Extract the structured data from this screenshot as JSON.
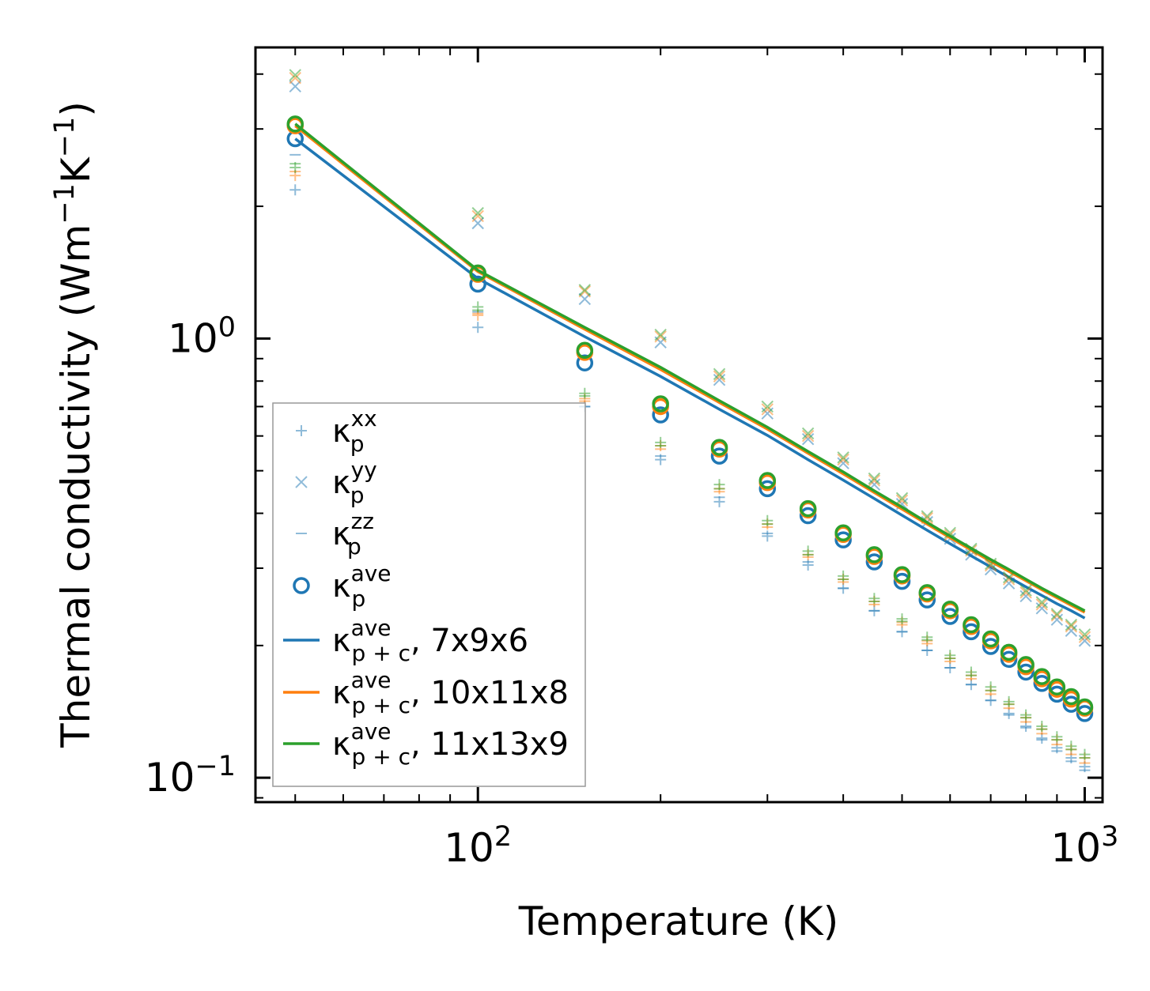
{
  "chart_data": {
    "type": "scatter",
    "xscale": "log",
    "yscale": "log",
    "xlabel": "Temperature (K)",
    "ylabel_main": "Thermal conductivity (Wm",
    "ylabel_sup1": "−1",
    "ylabel_mid": "K",
    "ylabel_sup2": "−1",
    "ylabel_end": ")",
    "xlim": [
      43,
      1070
    ],
    "ylim": [
      0.088,
      4.6
    ],
    "x_ticks": [
      {
        "value": 100,
        "base": "10",
        "exp": "2"
      },
      {
        "value": 1000,
        "base": "10",
        "exp": "3"
      }
    ],
    "y_ticks": [
      {
        "value": 0.1,
        "base": "10",
        "exp": "−1"
      },
      {
        "value": 1.0,
        "base": "10",
        "exp": "0"
      }
    ],
    "temperatures": [
      50,
      100,
      150,
      200,
      250,
      300,
      350,
      400,
      450,
      500,
      550,
      600,
      650,
      700,
      750,
      800,
      850,
      900,
      950,
      1000
    ],
    "meshes": [
      {
        "name": "7x9x6",
        "color": "#1f77b4",
        "xx": [
          2.18,
          1.06,
          0.7,
          0.53,
          0.425,
          0.355,
          0.305,
          0.27,
          0.24,
          0.215,
          0.195,
          0.178,
          0.163,
          0.15,
          0.14,
          0.131,
          0.123,
          0.117,
          0.111,
          0.106
        ],
        "yy": [
          3.75,
          1.83,
          1.23,
          0.98,
          0.805,
          0.675,
          0.59,
          0.52,
          0.465,
          0.42,
          0.382,
          0.35,
          0.322,
          0.298,
          0.277,
          0.259,
          0.243,
          0.229,
          0.216,
          0.205
        ],
        "zz": [
          2.62,
          1.15,
          0.7,
          0.54,
          0.435,
          0.36,
          0.31,
          0.27,
          0.24,
          0.215,
          0.195,
          0.178,
          0.163,
          0.15,
          0.139,
          0.13,
          0.122,
          0.115,
          0.109,
          0.104
        ],
        "ave": [
          2.85,
          1.33,
          0.88,
          0.67,
          0.54,
          0.455,
          0.395,
          0.348,
          0.31,
          0.28,
          0.254,
          0.233,
          0.215,
          0.199,
          0.186,
          0.174,
          0.164,
          0.155,
          0.147,
          0.14
        ],
        "total": [
          2.85,
          1.37,
          1.01,
          0.82,
          0.69,
          0.602,
          0.53,
          0.476,
          0.432,
          0.396,
          0.366,
          0.341,
          0.32,
          0.302,
          0.286,
          0.272,
          0.26,
          0.249,
          0.24,
          0.231
        ]
      },
      {
        "name": "10x11x8",
        "color": "#ff7f0e",
        "xx": [
          2.35,
          1.13,
          0.73,
          0.57,
          0.455,
          0.378,
          0.322,
          0.283,
          0.252,
          0.226,
          0.205,
          0.187,
          0.171,
          0.158,
          0.147,
          0.137,
          0.129,
          0.122,
          0.116,
          0.111
        ],
        "yy": [
          3.92,
          1.9,
          1.28,
          1.01,
          0.82,
          0.69,
          0.6,
          0.53,
          0.475,
          0.428,
          0.39,
          0.357,
          0.329,
          0.304,
          0.283,
          0.264,
          0.248,
          0.234,
          0.221,
          0.209
        ],
        "zz": [
          2.4,
          1.14,
          0.72,
          0.56,
          0.448,
          0.372,
          0.318,
          0.279,
          0.248,
          0.223,
          0.202,
          0.184,
          0.168,
          0.155,
          0.144,
          0.134,
          0.126,
          0.119,
          0.113,
          0.108
        ],
        "ave": [
          3.05,
          1.4,
          0.93,
          0.7,
          0.56,
          0.47,
          0.407,
          0.358,
          0.319,
          0.288,
          0.262,
          0.24,
          0.221,
          0.205,
          0.191,
          0.179,
          0.168,
          0.159,
          0.151,
          0.144
        ],
        "total": [
          3.05,
          1.42,
          1.05,
          0.85,
          0.715,
          0.622,
          0.548,
          0.492,
          0.446,
          0.409,
          0.378,
          0.352,
          0.33,
          0.311,
          0.295,
          0.281,
          0.268,
          0.257,
          0.247,
          0.238
        ]
      },
      {
        "name": "11x13x9",
        "color": "#2ca02c",
        "xx": [
          2.45,
          1.18,
          0.75,
          0.58,
          0.465,
          0.385,
          0.328,
          0.288,
          0.256,
          0.23,
          0.209,
          0.19,
          0.174,
          0.161,
          0.149,
          0.139,
          0.131,
          0.124,
          0.118,
          0.113
        ],
        "yy": [
          3.98,
          1.93,
          1.29,
          1.02,
          0.83,
          0.7,
          0.608,
          0.536,
          0.48,
          0.433,
          0.394,
          0.361,
          0.332,
          0.307,
          0.286,
          0.267,
          0.251,
          0.236,
          0.223,
          0.212
        ],
        "zz": [
          2.5,
          1.16,
          0.74,
          0.57,
          0.455,
          0.378,
          0.322,
          0.283,
          0.252,
          0.227,
          0.206,
          0.187,
          0.171,
          0.158,
          0.147,
          0.137,
          0.129,
          0.122,
          0.116,
          0.111
        ],
        "ave": [
          3.08,
          1.41,
          0.94,
          0.71,
          0.565,
          0.475,
          0.41,
          0.361,
          0.322,
          0.29,
          0.264,
          0.242,
          0.223,
          0.207,
          0.193,
          0.181,
          0.17,
          0.161,
          0.153,
          0.145
        ],
        "total": [
          3.08,
          1.43,
          1.06,
          0.86,
          0.722,
          0.628,
          0.553,
          0.497,
          0.45,
          0.413,
          0.381,
          0.355,
          0.333,
          0.314,
          0.298,
          0.283,
          0.27,
          0.259,
          0.249,
          0.24
        ]
      }
    ],
    "legend": {
      "position": "lower-left",
      "entries": [
        {
          "symbol": "plus",
          "color": "#1f77b4",
          "faded": true,
          "base": "κ",
          "sub": "p",
          "sup": "xx",
          "suffix": ""
        },
        {
          "symbol": "x",
          "color": "#1f77b4",
          "faded": true,
          "base": "κ",
          "sub": "p",
          "sup": "yy",
          "suffix": ""
        },
        {
          "symbol": "dash",
          "color": "#1f77b4",
          "faded": true,
          "base": "κ",
          "sub": "p",
          "sup": "zz",
          "suffix": ""
        },
        {
          "symbol": "circle",
          "color": "#1f77b4",
          "faded": false,
          "base": "κ",
          "sub": "p",
          "sup": "ave",
          "suffix": ""
        },
        {
          "symbol": "line",
          "color": "#1f77b4",
          "faded": false,
          "base": "κ",
          "sub": "p + c",
          "sup": "ave",
          "suffix": ", 7x9x6"
        },
        {
          "symbol": "line",
          "color": "#ff7f0e",
          "faded": false,
          "base": "κ",
          "sub": "p + c",
          "sup": "ave",
          "suffix": ", 10x11x8"
        },
        {
          "symbol": "line",
          "color": "#2ca02c",
          "faded": false,
          "base": "κ",
          "sub": "p + c",
          "sup": "ave",
          "suffix": ", 11x13x9"
        }
      ]
    }
  }
}
